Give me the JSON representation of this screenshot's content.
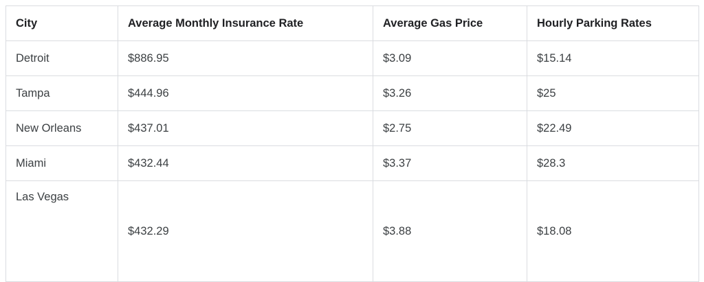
{
  "chart_data": {
    "type": "table",
    "title": "",
    "columns": [
      "City",
      "Average Monthly Insurance Rate",
      "Average Gas Price",
      "Hourly Parking Rates"
    ],
    "rows": [
      [
        "Detroit",
        "$886.95",
        "$3.09",
        "$15.14"
      ],
      [
        "Tampa",
        "$444.96",
        "$3.26",
        "$25"
      ],
      [
        "New Orleans",
        "$437.01",
        "$2.75",
        "$22.49"
      ],
      [
        "Miami",
        "$432.44",
        "$3.37",
        "$28.3"
      ],
      [
        "Las Vegas",
        "$432.29",
        "$3.88",
        "$18.08"
      ]
    ],
    "layout": {
      "grid": "on",
      "border_color": "#dadce0",
      "header_text_color": "#202124",
      "body_text_color": "#3c4043",
      "background_color": "#ffffff"
    }
  }
}
